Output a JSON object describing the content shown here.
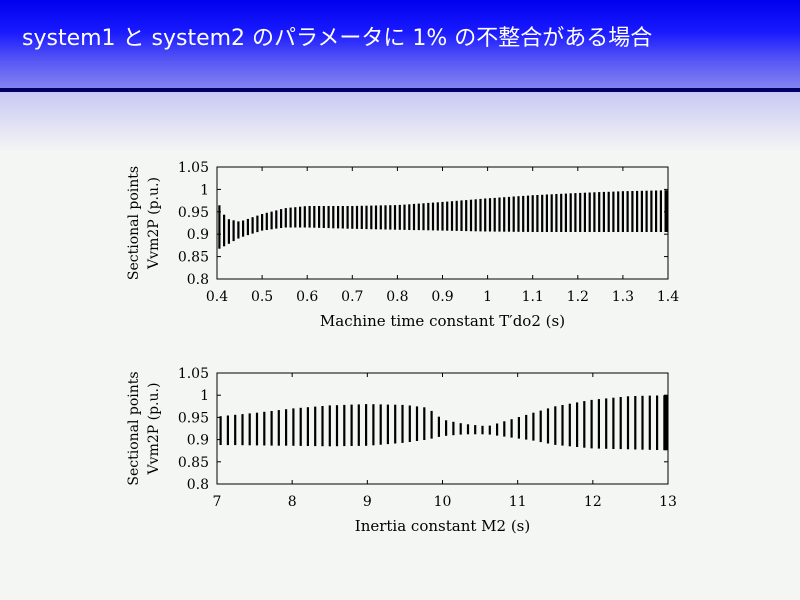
{
  "slide": {
    "title": "system1 と system2 のパラメータに 1% の不整合がある場合"
  },
  "colors": {
    "header_blue": "#0000ee",
    "header_rule": "#000066",
    "ink": "#000000"
  },
  "chart_data": [
    {
      "type": "bar",
      "title": "",
      "xlabel": "Machine time constant T′do2 (s)",
      "ylabel_line1": "Sectional points",
      "ylabel_line2": "Vvm2P (p.u.)",
      "xlim": [
        0.4,
        1.4
      ],
      "ylim": [
        0.8,
        1.05
      ],
      "xticks": [
        0.4,
        0.5,
        0.6,
        0.7,
        0.8,
        0.9,
        1.0,
        1.1,
        1.2,
        1.3,
        1.4
      ],
      "xtick_labels": [
        "0.4",
        "0.5",
        "0.6",
        "0.7",
        "0.8",
        "0.9",
        "1",
        "1.1",
        "1.2",
        "1.3",
        "1.4"
      ],
      "yticks": [
        0.8,
        0.85,
        0.9,
        0.95,
        1.0,
        1.05
      ],
      "ytick_labels": [
        "0.8",
        "0.85",
        "0.9",
        "0.95",
        "1",
        "1.05"
      ],
      "envelope": [
        {
          "x": 0.4,
          "low": 0.865,
          "high": 0.975
        },
        {
          "x": 0.42,
          "low": 0.875,
          "high": 0.935
        },
        {
          "x": 0.45,
          "low": 0.892,
          "high": 0.928
        },
        {
          "x": 0.5,
          "low": 0.908,
          "high": 0.945
        },
        {
          "x": 0.55,
          "low": 0.915,
          "high": 0.958
        },
        {
          "x": 0.6,
          "low": 0.915,
          "high": 0.963
        },
        {
          "x": 0.7,
          "low": 0.912,
          "high": 0.963
        },
        {
          "x": 0.8,
          "low": 0.91,
          "high": 0.965
        },
        {
          "x": 0.9,
          "low": 0.908,
          "high": 0.972
        },
        {
          "x": 1.0,
          "low": 0.906,
          "high": 0.98
        },
        {
          "x": 1.1,
          "low": 0.905,
          "high": 0.987
        },
        {
          "x": 1.2,
          "low": 0.905,
          "high": 0.992
        },
        {
          "x": 1.3,
          "low": 0.905,
          "high": 0.996
        },
        {
          "x": 1.4,
          "low": 0.905,
          "high": 0.998
        }
      ],
      "bar_count": 95
    },
    {
      "type": "bar",
      "title": "",
      "xlabel": "Inertia constant M2 (s)",
      "ylabel_line1": "Sectional points",
      "ylabel_line2": "Vvm2P (p.u.)",
      "xlim": [
        7,
        13
      ],
      "ylim": [
        0.8,
        1.05
      ],
      "xticks": [
        7,
        8,
        9,
        10,
        11,
        12,
        13
      ],
      "xtick_labels": [
        "7",
        "8",
        "9",
        "10",
        "11",
        "12",
        "13"
      ],
      "yticks": [
        0.8,
        0.85,
        0.9,
        0.95,
        1.0,
        1.05
      ],
      "ytick_labels": [
        "0.8",
        "0.85",
        "0.9",
        "0.95",
        "1",
        "1.05"
      ],
      "envelope": [
        {
          "x": 7.0,
          "low": 0.888,
          "high": 0.952
        },
        {
          "x": 7.5,
          "low": 0.887,
          "high": 0.96
        },
        {
          "x": 8.0,
          "low": 0.886,
          "high": 0.97
        },
        {
          "x": 8.5,
          "low": 0.885,
          "high": 0.977
        },
        {
          "x": 9.0,
          "low": 0.886,
          "high": 0.98
        },
        {
          "x": 9.5,
          "low": 0.893,
          "high": 0.978
        },
        {
          "x": 9.8,
          "low": 0.9,
          "high": 0.972
        },
        {
          "x": 10.0,
          "low": 0.908,
          "high": 0.945
        },
        {
          "x": 10.3,
          "low": 0.912,
          "high": 0.935
        },
        {
          "x": 10.6,
          "low": 0.912,
          "high": 0.93
        },
        {
          "x": 10.9,
          "low": 0.905,
          "high": 0.945
        },
        {
          "x": 11.2,
          "low": 0.898,
          "high": 0.96
        },
        {
          "x": 11.5,
          "low": 0.888,
          "high": 0.975
        },
        {
          "x": 12.0,
          "low": 0.88,
          "high": 0.99
        },
        {
          "x": 12.5,
          "low": 0.878,
          "high": 0.998
        },
        {
          "x": 13.0,
          "low": 0.876,
          "high": 1.0
        }
      ],
      "bar_count": 62
    }
  ]
}
